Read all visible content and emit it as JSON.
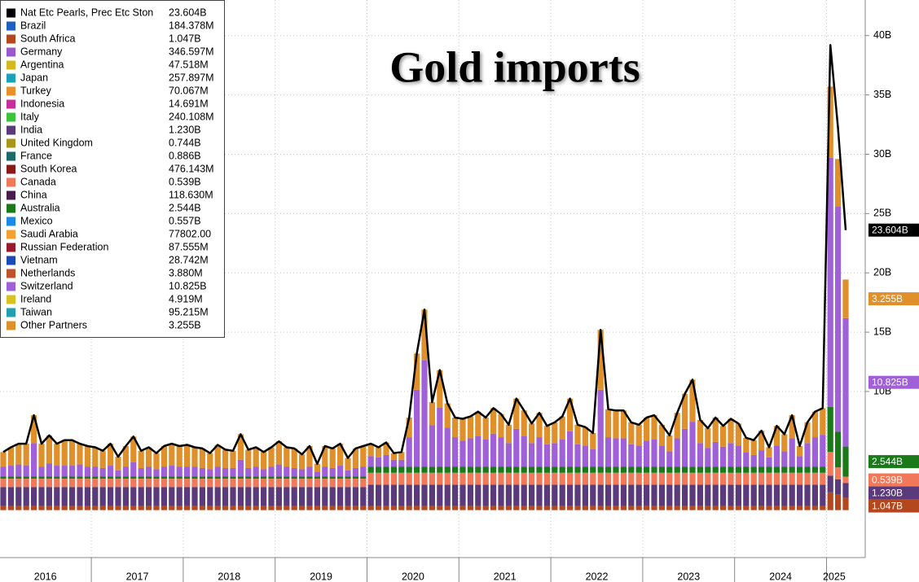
{
  "chart_data": {
    "type": "bar",
    "stacked": true,
    "title": "Gold imports",
    "categories": [
      null,
      null,
      null,
      null,
      null,
      null,
      "2016",
      null,
      null,
      null,
      null,
      null,
      null,
      null,
      null,
      null,
      null,
      null,
      "2017",
      null,
      null,
      null,
      null,
      null,
      null,
      null,
      null,
      null,
      null,
      null,
      "2018",
      null,
      null,
      null,
      null,
      null,
      null,
      null,
      null,
      null,
      null,
      null,
      "2019",
      null,
      null,
      null,
      null,
      null,
      null,
      null,
      null,
      null,
      null,
      null,
      "2020",
      null,
      null,
      null,
      null,
      null,
      null,
      null,
      null,
      null,
      null,
      null,
      "2021",
      null,
      null,
      null,
      null,
      null,
      null,
      null,
      null,
      null,
      null,
      null,
      "2022",
      null,
      null,
      null,
      null,
      null,
      null,
      null,
      null,
      null,
      null,
      null,
      "2023",
      null,
      null,
      null,
      null,
      null,
      null,
      null,
      null,
      null,
      null,
      null,
      "2024",
      null,
      null,
      null,
      null,
      null,
      null,
      "2025",
      null
    ],
    "ylim": [
      -4,
      43
    ],
    "yticks": [
      {
        "value": 10,
        "label": "10B"
      },
      {
        "value": 15,
        "label": "15B"
      },
      {
        "value": 20,
        "label": "20B"
      },
      {
        "value": 25,
        "label": "25B"
      },
      {
        "value": 30,
        "label": "30B"
      },
      {
        "value": 35,
        "label": "35B"
      },
      {
        "value": 40,
        "label": "40B"
      }
    ],
    "grid": true,
    "legend": "top-left",
    "series": [
      {
        "name": "Nat Etc Pearls, Prec Etc Ston",
        "type": "line",
        "color": "#000000",
        "label": "23.604B",
        "values": [
          4.9,
          5.3,
          5.6,
          5.6,
          8.0,
          5.6,
          6.3,
          5.6,
          5.9,
          5.9,
          5.6,
          5.4,
          5.3,
          5.0,
          5.6,
          4.5,
          5.4,
          6.2,
          5.0,
          5.3,
          4.8,
          5.4,
          5.6,
          5.4,
          5.5,
          5.3,
          5.2,
          4.8,
          5.5,
          5.1,
          5.0,
          6.4,
          5.1,
          5.3,
          4.9,
          5.3,
          5.8,
          5.3,
          5.2,
          4.7,
          5.4,
          3.9,
          5.4,
          5.2,
          5.6,
          4.4,
          5.2,
          5.4,
          5.6,
          5.3,
          5.7,
          4.8,
          4.9,
          7.8,
          13.2,
          16.9,
          9.1,
          11.8,
          9.0,
          7.8,
          7.7,
          7.9,
          8.3,
          7.8,
          8.6,
          8.1,
          7.2,
          9.4,
          8.4,
          7.3,
          8.2,
          7.1,
          7.4,
          7.9,
          9.4,
          7.2,
          7.0,
          6.5,
          15.2,
          8.5,
          8.4,
          8.4,
          7.4,
          7.2,
          7.8,
          8.0,
          7.2,
          6.3,
          8.2,
          9.8,
          11.0,
          7.6,
          6.9,
          7.8,
          7.1,
          7.7,
          7.3,
          6.1,
          5.9,
          6.7,
          5.3,
          7.1,
          6.4,
          8.0,
          5.4,
          7.4,
          8.3,
          8.6,
          39.2,
          32.2,
          23.604
        ]
      },
      {
        "name": "Brazil",
        "color": "#1f5fc4",
        "label": "184.378M"
      },
      {
        "name": "South Africa",
        "color": "#b5471e",
        "label": "1.047B",
        "values": [
          0.35,
          0.35,
          0.35,
          0.35,
          0.35,
          0.35,
          0.35,
          0.35,
          0.35,
          0.35,
          0.35,
          0.35,
          0.35,
          0.35,
          0.35,
          0.35,
          0.35,
          0.35,
          0.35,
          0.35,
          0.35,
          0.35,
          0.35,
          0.35,
          0.35,
          0.35,
          0.35,
          0.35,
          0.35,
          0.35,
          0.35,
          0.35,
          0.35,
          0.35,
          0.35,
          0.35,
          0.35,
          0.35,
          0.35,
          0.35,
          0.35,
          0.35,
          0.35,
          0.35,
          0.35,
          0.35,
          0.35,
          0.35,
          0.35,
          0.35,
          0.35,
          0.35,
          0.35,
          0.35,
          0.35,
          0.35,
          0.35,
          0.35,
          0.35,
          0.35,
          0.35,
          0.35,
          0.35,
          0.35,
          0.35,
          0.35,
          0.35,
          0.35,
          0.35,
          0.35,
          0.35,
          0.35,
          0.35,
          0.35,
          0.35,
          0.35,
          0.35,
          0.35,
          0.35,
          0.35,
          0.35,
          0.35,
          0.35,
          0.35,
          0.35,
          0.35,
          0.35,
          0.35,
          0.35,
          0.35,
          0.35,
          0.35,
          0.35,
          0.35,
          0.35,
          0.35,
          0.35,
          0.35,
          0.35,
          0.35,
          0.35,
          0.35,
          0.35,
          0.35,
          0.35,
          0.35,
          0.35,
          0.35,
          1.5,
          1.3,
          1.047
        ]
      },
      {
        "name": "Germany",
        "color": "#9b59d0",
        "label": "346.597M"
      },
      {
        "name": "Argentina",
        "color": "#d4b81f",
        "label": "47.518M"
      },
      {
        "name": "Japan",
        "color": "#1aa3b8",
        "label": "257.897M"
      },
      {
        "name": "Turkey",
        "color": "#e8902a",
        "label": "70.067M"
      },
      {
        "name": "Indonesia",
        "color": "#c62f9b",
        "label": "14.691M"
      },
      {
        "name": "Italy",
        "color": "#3ac43a",
        "label": "240.108M"
      },
      {
        "name": "India",
        "color": "#5a3a7a",
        "label": "1.230B",
        "values": [
          1.6,
          1.6,
          1.6,
          1.6,
          1.6,
          1.6,
          1.6,
          1.6,
          1.6,
          1.6,
          1.6,
          1.6,
          1.6,
          1.6,
          1.6,
          1.6,
          1.6,
          1.6,
          1.6,
          1.6,
          1.6,
          1.6,
          1.6,
          1.6,
          1.6,
          1.6,
          1.6,
          1.6,
          1.6,
          1.6,
          1.6,
          1.6,
          1.6,
          1.6,
          1.6,
          1.6,
          1.6,
          1.6,
          1.6,
          1.6,
          1.6,
          1.6,
          1.6,
          1.6,
          1.6,
          1.6,
          1.6,
          1.6,
          1.8,
          1.8,
          1.8,
          1.8,
          1.8,
          1.8,
          1.8,
          1.8,
          1.8,
          1.8,
          1.8,
          1.8,
          1.8,
          1.8,
          1.8,
          1.8,
          1.8,
          1.8,
          1.8,
          1.8,
          1.8,
          1.8,
          1.8,
          1.8,
          1.8,
          1.8,
          1.8,
          1.8,
          1.8,
          1.8,
          1.8,
          1.8,
          1.8,
          1.8,
          1.8,
          1.8,
          1.8,
          1.8,
          1.8,
          1.8,
          1.8,
          1.8,
          1.8,
          1.8,
          1.8,
          1.8,
          1.8,
          1.8,
          1.8,
          1.8,
          1.8,
          1.8,
          1.8,
          1.8,
          1.8,
          1.8,
          1.8,
          1.8,
          1.8,
          1.8,
          1.4,
          1.3,
          1.23
        ]
      },
      {
        "name": "United Kingdom",
        "color": "#a8951a",
        "label": "0.744B"
      },
      {
        "name": "France",
        "color": "#1a6a6a",
        "label": "0.886B"
      },
      {
        "name": "South Korea",
        "color": "#8a1a1a",
        "label": "476.143M"
      },
      {
        "name": "Canada",
        "color": "#f2785a",
        "label": "0.539B",
        "values": [
          0.7,
          0.7,
          0.7,
          0.7,
          0.7,
          0.7,
          0.7,
          0.7,
          0.7,
          0.7,
          0.7,
          0.7,
          0.7,
          0.7,
          0.7,
          0.7,
          0.7,
          0.7,
          0.7,
          0.7,
          0.7,
          0.7,
          0.7,
          0.7,
          0.7,
          0.7,
          0.7,
          0.7,
          0.7,
          0.7,
          0.7,
          0.7,
          0.7,
          0.7,
          0.7,
          0.7,
          0.7,
          0.7,
          0.7,
          0.7,
          0.7,
          0.7,
          0.7,
          0.7,
          0.7,
          0.7,
          0.7,
          0.7,
          1.0,
          1.0,
          1.0,
          1.0,
          1.0,
          1.0,
          1.0,
          1.0,
          1.0,
          1.0,
          1.0,
          1.0,
          1.0,
          1.0,
          1.0,
          1.0,
          1.0,
          1.0,
          1.0,
          1.0,
          1.0,
          1.0,
          1.0,
          1.0,
          1.0,
          1.0,
          1.0,
          1.0,
          1.0,
          1.0,
          1.0,
          1.0,
          1.0,
          1.0,
          1.0,
          1.0,
          1.0,
          1.0,
          1.0,
          1.0,
          1.0,
          1.0,
          1.0,
          1.0,
          1.0,
          1.0,
          1.0,
          1.0,
          1.0,
          1.0,
          1.0,
          1.0,
          1.0,
          1.0,
          1.0,
          1.0,
          1.0,
          1.0,
          1.0,
          1.0,
          2.0,
          1.0,
          0.539
        ]
      },
      {
        "name": "China",
        "color": "#4a1a4a",
        "label": "118.630M"
      },
      {
        "name": "Australia",
        "color": "#1a7a1a",
        "label": "2.544B",
        "values": [
          0.2,
          0.2,
          0.2,
          0.2,
          0.2,
          0.2,
          0.2,
          0.2,
          0.2,
          0.2,
          0.2,
          0.2,
          0.2,
          0.2,
          0.2,
          0.2,
          0.2,
          0.2,
          0.2,
          0.2,
          0.2,
          0.2,
          0.2,
          0.2,
          0.2,
          0.2,
          0.2,
          0.2,
          0.2,
          0.2,
          0.2,
          0.2,
          0.2,
          0.2,
          0.2,
          0.2,
          0.2,
          0.2,
          0.2,
          0.2,
          0.2,
          0.2,
          0.2,
          0.2,
          0.2,
          0.2,
          0.2,
          0.2,
          0.5,
          0.5,
          0.5,
          0.5,
          0.5,
          0.5,
          0.5,
          0.5,
          0.5,
          0.5,
          0.5,
          0.5,
          0.5,
          0.5,
          0.5,
          0.5,
          0.5,
          0.5,
          0.5,
          0.5,
          0.5,
          0.5,
          0.5,
          0.5,
          0.5,
          0.5,
          0.5,
          0.5,
          0.5,
          0.5,
          0.5,
          0.5,
          0.5,
          0.5,
          0.5,
          0.5,
          0.5,
          0.5,
          0.5,
          0.5,
          0.5,
          0.5,
          0.5,
          0.5,
          0.5,
          0.5,
          0.5,
          0.5,
          0.5,
          0.5,
          0.5,
          0.5,
          0.5,
          0.5,
          0.5,
          0.5,
          0.5,
          0.5,
          0.5,
          0.5,
          3.8,
          3.0,
          2.544
        ]
      },
      {
        "name": "Mexico",
        "color": "#1a8ae8",
        "label": "0.557B"
      },
      {
        "name": "Saudi Arabia",
        "color": "#f5a030",
        "label": "77802.00"
      },
      {
        "name": "Russian Federation",
        "color": "#9a1a2a",
        "label": "87.555M"
      },
      {
        "name": "Vietnam",
        "color": "#1a4ab8",
        "label": "28.742M"
      },
      {
        "name": "Netherlands",
        "color": "#c0502a",
        "label": "3.880M"
      },
      {
        "name": "Switzerland",
        "color": "#a060d8",
        "label": "10.825B",
        "values": [
          0.8,
          0.9,
          1.0,
          0.9,
          2.8,
          0.8,
          1.1,
          0.9,
          0.9,
          0.9,
          1.0,
          0.8,
          0.8,
          0.7,
          0.9,
          0.5,
          0.8,
          1.2,
          0.7,
          0.8,
          0.6,
          0.8,
          0.9,
          0.8,
          0.8,
          0.8,
          0.7,
          0.6,
          0.8,
          0.7,
          0.7,
          1.4,
          0.7,
          0.8,
          0.6,
          0.8,
          1.0,
          0.8,
          0.7,
          0.6,
          0.8,
          0.4,
          0.8,
          0.7,
          0.9,
          0.5,
          0.7,
          0.8,
          0.9,
          0.8,
          1.0,
          0.6,
          0.6,
          2.5,
          6.5,
          9.0,
          3.5,
          5.0,
          3.3,
          2.5,
          2.2,
          2.4,
          2.6,
          2.3,
          2.8,
          2.5,
          2.0,
          3.2,
          2.6,
          2.0,
          2.5,
          1.9,
          2.0,
          2.3,
          3.0,
          1.9,
          1.8,
          1.5,
          6.5,
          2.5,
          2.4,
          2.4,
          1.9,
          1.8,
          2.2,
          2.3,
          1.8,
          1.3,
          2.4,
          3.2,
          3.8,
          2.0,
          1.6,
          2.1,
          1.7,
          2.0,
          1.8,
          1.2,
          1.0,
          1.4,
          0.8,
          1.8,
          1.3,
          2.4,
          0.9,
          2.0,
          2.5,
          2.7,
          21.0,
          19.0,
          10.825
        ]
      },
      {
        "name": "Ireland",
        "color": "#d8c020",
        "label": "4.919M"
      },
      {
        "name": "Taiwan",
        "color": "#20a0b0",
        "label": "95.215M"
      },
      {
        "name": "Other Partners",
        "color": "#e0902a",
        "label": "3.255B",
        "values": [
          1.25,
          1.55,
          1.75,
          1.85,
          2.35,
          1.95,
          2.35,
          1.85,
          2.15,
          2.15,
          1.75,
          1.75,
          1.65,
          1.45,
          1.85,
          1.15,
          1.75,
          2.15,
          1.45,
          1.65,
          1.35,
          1.75,
          1.85,
          1.75,
          1.85,
          1.65,
          1.65,
          1.35,
          1.85,
          1.55,
          1.45,
          2.15,
          1.55,
          1.65,
          1.45,
          1.65,
          1.95,
          1.65,
          1.65,
          1.25,
          1.75,
          0.65,
          1.75,
          1.65,
          1.85,
          1.05,
          1.65,
          1.75,
          1.05,
          0.85,
          1.05,
          0.55,
          0.65,
          1.65,
          3.05,
          4.25,
          1.95,
          3.15,
          2.05,
          1.65,
          1.85,
          1.85,
          2.05,
          1.85,
          2.15,
          1.95,
          1.55,
          2.55,
          2.15,
          1.65,
          2.05,
          1.55,
          1.75,
          1.95,
          2.75,
          1.65,
          1.55,
          1.35,
          5.05,
          2.35,
          2.35,
          2.35,
          1.85,
          1.75,
          1.95,
          2.05,
          1.75,
          1.35,
          2.15,
          2.95,
          3.55,
          1.95,
          1.65,
          2.05,
          1.75,
          2.05,
          1.85,
          1.25,
          1.25,
          1.65,
          0.85,
          1.65,
          1.45,
          1.95,
          0.85,
          1.75,
          2.15,
          2.25,
          6.0,
          4.0,
          3.255
        ]
      }
    ]
  }
}
